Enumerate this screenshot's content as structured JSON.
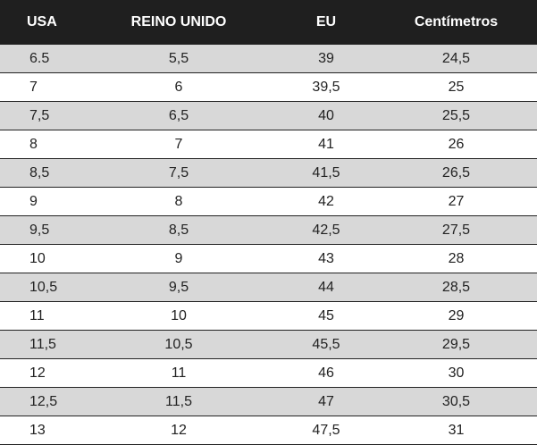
{
  "table": {
    "headers": [
      "USA",
      "REINO UNIDO",
      "EU",
      "Centímetros"
    ],
    "rows": [
      [
        "6.5",
        "5,5",
        "39",
        "24,5"
      ],
      [
        "7",
        "6",
        "39,5",
        "25"
      ],
      [
        "7,5",
        "6,5",
        "40",
        "25,5"
      ],
      [
        "8",
        "7",
        "41",
        "26"
      ],
      [
        "8,5",
        "7,5",
        "41,5",
        "26,5"
      ],
      [
        "9",
        "8",
        "42",
        "27"
      ],
      [
        "9,5",
        "8,5",
        "42,5",
        "27,5"
      ],
      [
        "10",
        "9",
        "43",
        "28"
      ],
      [
        "10,5",
        "9,5",
        "44",
        "28,5"
      ],
      [
        "11",
        "10",
        "45",
        "29"
      ],
      [
        "11,5",
        "10,5",
        "45,5",
        "29,5"
      ],
      [
        "12",
        "11",
        "46",
        "30"
      ],
      [
        "12,5",
        "11,5",
        "47",
        "30,5"
      ],
      [
        "13",
        "12",
        "47,5",
        "31"
      ]
    ]
  },
  "colors": {
    "header_bg": "#1f1f1f",
    "header_text": "#ffffff",
    "stripe_bg": "#d8d8d8",
    "row_bg": "#ffffff",
    "rule": "#222222"
  }
}
